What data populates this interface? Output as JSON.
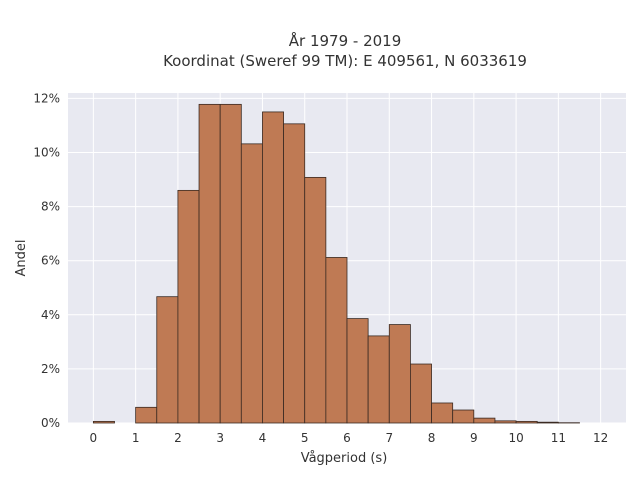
{
  "chart_data": {
    "type": "bar",
    "title": "År 1979 - 2019",
    "subtitle": "Koordinat (Sweref 99 TM): E 409561, N 6033619",
    "xlabel": "Vågperiod (s)",
    "ylabel": "Andel",
    "bin_width": 0.5,
    "xlim": [
      -0.6,
      12.6
    ],
    "ylim": [
      0,
      12.2
    ],
    "x_ticks": [
      0,
      1,
      2,
      3,
      4,
      5,
      6,
      7,
      8,
      9,
      10,
      11,
      12
    ],
    "y_ticks": [
      0,
      2,
      4,
      6,
      8,
      10,
      12
    ],
    "y_tick_suffix": "%",
    "grid": true,
    "bins_x": [
      0,
      1,
      1.5,
      2,
      2.5,
      3,
      3.5,
      4,
      4.5,
      5,
      5.5,
      6,
      6.5,
      7,
      7.5,
      8,
      8.5,
      9,
      9.5,
      10,
      10.5,
      11
    ],
    "values": [
      0.06,
      0.58,
      4.67,
      8.6,
      11.78,
      11.78,
      10.32,
      11.5,
      11.06,
      9.08,
      6.12,
      3.86,
      3.22,
      3.64,
      2.18,
      0.74,
      0.48,
      0.18,
      0.08,
      0.06,
      0.03,
      0.01
    ],
    "colors": {
      "bar_fill": "#bf7a54",
      "bar_edge": "#3a2a22",
      "plot_bg": "#e8e9f1",
      "grid": "#ffffff",
      "text": "#333333"
    }
  }
}
